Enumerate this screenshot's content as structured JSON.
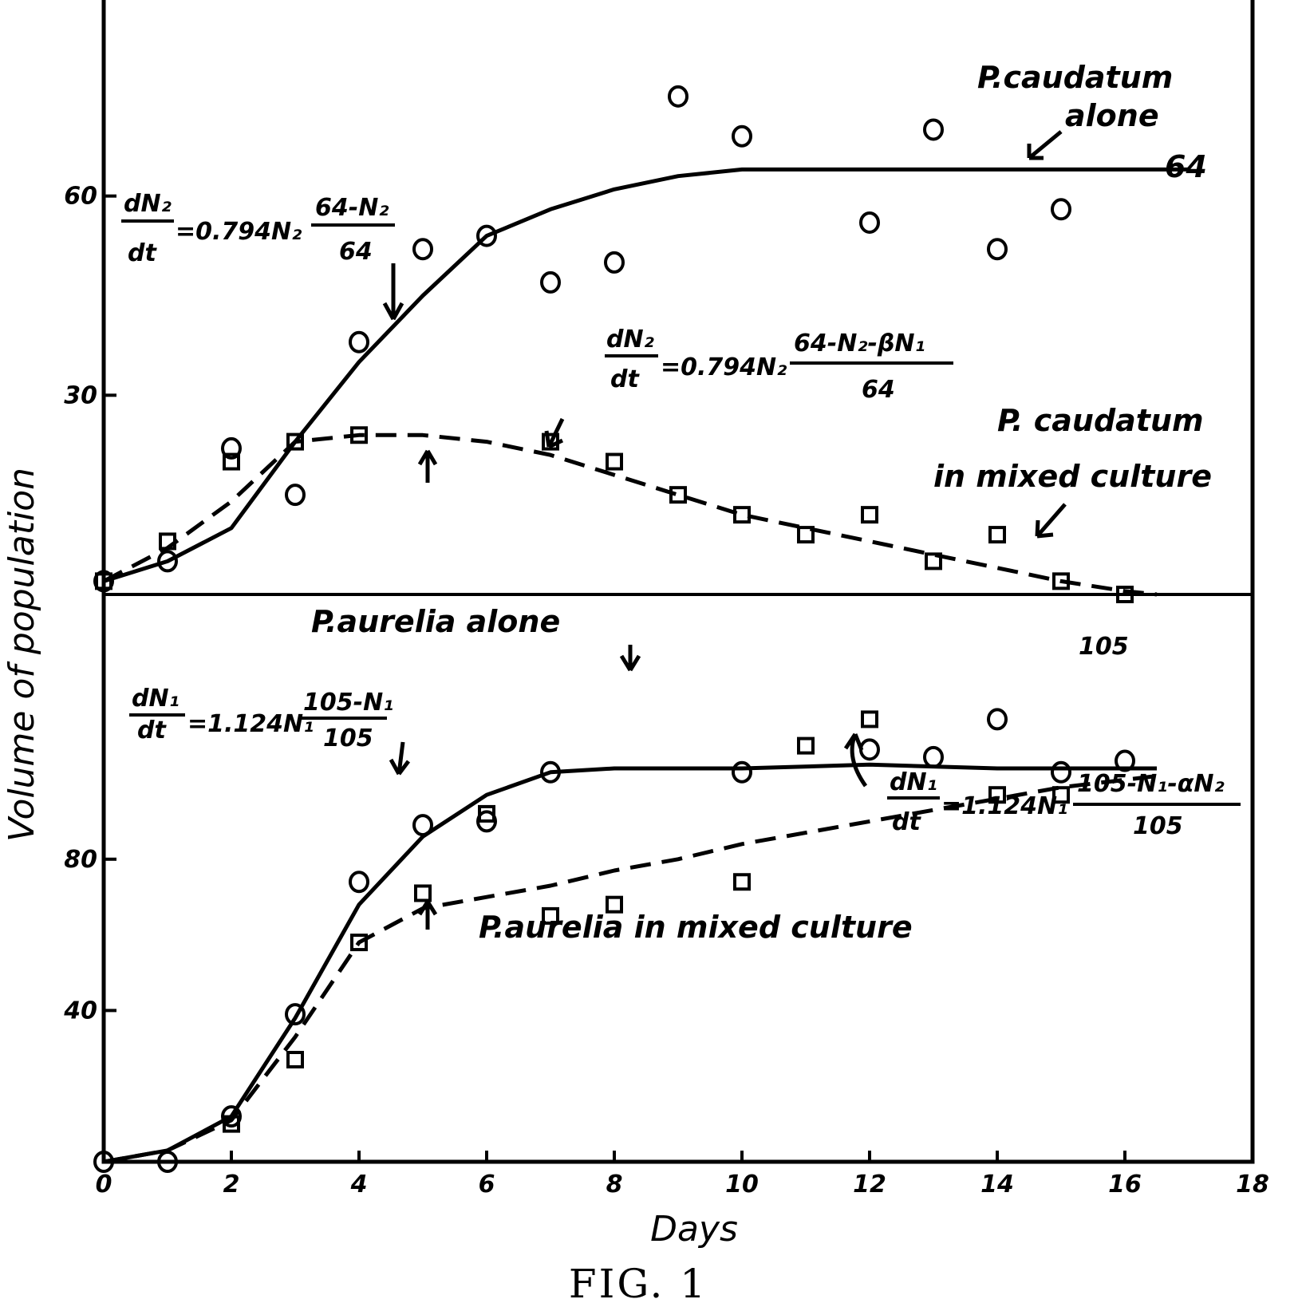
{
  "figure": {
    "caption": "FIG. 1"
  },
  "chart_data": [
    {
      "type": "scatter",
      "panel": "top",
      "xlabel": "",
      "ylabel": "",
      "xlim": [
        0,
        18
      ],
      "ylim": [
        0,
        90
      ],
      "y_tick_labels": [
        {
          "value": 30,
          "label": "30"
        },
        {
          "value": 60,
          "label": "60"
        }
      ],
      "series": [
        {
          "name": "P. caudatum alone",
          "marker": "circle",
          "points": [
            [
              0,
              2
            ],
            [
              1,
              5
            ],
            [
              2,
              22
            ],
            [
              3,
              15
            ],
            [
              4,
              38
            ],
            [
              5,
              52
            ],
            [
              6,
              54
            ],
            [
              7,
              47
            ],
            [
              8,
              50
            ],
            [
              9,
              75
            ],
            [
              10,
              69
            ],
            [
              12,
              56
            ],
            [
              13,
              70
            ],
            [
              14,
              52
            ],
            [
              15,
              58
            ]
          ],
          "curve": [
            [
              0,
              2
            ],
            [
              1,
              5
            ],
            [
              2,
              10
            ],
            [
              3,
              23
            ],
            [
              4,
              35
            ],
            [
              5,
              45
            ],
            [
              6,
              54
            ],
            [
              7,
              58
            ],
            [
              8,
              61
            ],
            [
              9,
              63
            ],
            [
              10,
              64
            ],
            [
              12,
              64
            ],
            [
              14,
              64
            ],
            [
              17,
              64
            ]
          ]
        },
        {
          "name": "P. caudatum in mixed culture",
          "marker": "square",
          "points": [
            [
              0,
              2
            ],
            [
              1,
              8
            ],
            [
              2,
              20
            ],
            [
              3,
              23
            ],
            [
              4,
              24
            ],
            [
              7,
              23
            ],
            [
              8,
              20
            ],
            [
              9,
              15
            ],
            [
              10,
              12
            ],
            [
              11,
              9
            ],
            [
              12,
              12
            ],
            [
              13,
              5
            ],
            [
              14,
              9
            ],
            [
              15,
              2
            ],
            [
              16,
              0
            ]
          ],
          "curve": [
            [
              0,
              2
            ],
            [
              1,
              7
            ],
            [
              2,
              14
            ],
            [
              3,
              23
            ],
            [
              4,
              24
            ],
            [
              5,
              24
            ],
            [
              6,
              23
            ],
            [
              7,
              21
            ],
            [
              8,
              18
            ],
            [
              9,
              15
            ],
            [
              10,
              12
            ],
            [
              11,
              10
            ],
            [
              12,
              8
            ],
            [
              13,
              6
            ],
            [
              14,
              4
            ],
            [
              15,
              2
            ],
            [
              16,
              0.5
            ],
            [
              16.5,
              0
            ]
          ]
        }
      ],
      "annotations": {
        "alone_label_1": "P.caudatum",
        "alone_label_2": "alone",
        "asymptote_label": "64",
        "mixed_label_1": "P. caudatum",
        "mixed_label_2": "in mixed culture",
        "eq_alone": {
          "num": "dN₂",
          "den": "dt",
          "mid": "=0.794N₂",
          "frac_num": "64-N₂",
          "frac_den": "64"
        },
        "eq_mixed": {
          "num": "dN₂",
          "den": "dt",
          "mid": "=0.794N₂",
          "frac_num": "64-N₂-βN₁",
          "frac_den": "64"
        }
      }
    },
    {
      "type": "scatter",
      "panel": "bottom",
      "xlabel": "Days",
      "ylabel": "Volume of population",
      "xlim": [
        0,
        18
      ],
      "ylim": [
        0,
        150
      ],
      "x_tick_labels": [
        {
          "value": 0,
          "label": "0"
        },
        {
          "value": 2,
          "label": "2"
        },
        {
          "value": 4,
          "label": "4"
        },
        {
          "value": 6,
          "label": "6"
        },
        {
          "value": 8,
          "label": "8"
        },
        {
          "value": 10,
          "label": "10"
        },
        {
          "value": 12,
          "label": "12"
        },
        {
          "value": 14,
          "label": "14"
        },
        {
          "value": 16,
          "label": "16"
        },
        {
          "value": 18,
          "label": "18"
        }
      ],
      "y_tick_labels": [
        {
          "value": 40,
          "label": "40"
        },
        {
          "value": 80,
          "label": "80"
        }
      ],
      "series": [
        {
          "name": "P. aurelia alone",
          "marker": "circle",
          "points": [
            [
              0,
              0
            ],
            [
              1,
              0
            ],
            [
              2,
              12
            ],
            [
              3,
              39
            ],
            [
              4,
              74
            ],
            [
              5,
              89
            ],
            [
              6,
              90
            ],
            [
              7,
              103
            ],
            [
              10,
              103
            ],
            [
              12,
              109
            ],
            [
              13,
              107
            ],
            [
              14,
              117
            ],
            [
              15,
              103
            ],
            [
              16,
              106
            ]
          ],
          "curve": [
            [
              0,
              0
            ],
            [
              1,
              3
            ],
            [
              2,
              12
            ],
            [
              3,
              38
            ],
            [
              4,
              68
            ],
            [
              5,
              86
            ],
            [
              6,
              97
            ],
            [
              7,
              103
            ],
            [
              8,
              104
            ],
            [
              10,
              104
            ],
            [
              12,
              105
            ],
            [
              14,
              104
            ],
            [
              16,
              104
            ],
            [
              16.5,
              104
            ]
          ]
        },
        {
          "name": "P. aurelia in mixed culture",
          "marker": "square",
          "points": [
            [
              2,
              10
            ],
            [
              3,
              27
            ],
            [
              4,
              58
            ],
            [
              5,
              71
            ],
            [
              6,
              92
            ],
            [
              7,
              65
            ],
            [
              8,
              68
            ],
            [
              10,
              74
            ],
            [
              11,
              110
            ],
            [
              12,
              117
            ],
            [
              14,
              97
            ],
            [
              15,
              97
            ]
          ],
          "curve": [
            [
              0,
              0
            ],
            [
              1,
              3
            ],
            [
              2,
              11
            ],
            [
              3,
              33
            ],
            [
              4,
              58
            ],
            [
              5,
              67
            ],
            [
              6,
              70
            ],
            [
              7,
              73
            ],
            [
              8,
              77
            ],
            [
              9,
              80
            ],
            [
              10,
              84
            ],
            [
              11,
              87
            ],
            [
              12,
              90
            ],
            [
              13,
              93
            ],
            [
              14,
              96
            ],
            [
              15,
              99
            ],
            [
              16,
              101
            ],
            [
              16.5,
              102
            ]
          ]
        }
      ],
      "annotations": {
        "alone_label": "P.aurelia  alone",
        "asymptote_label": "105",
        "mixed_label": "P.aurelia in mixed culture",
        "eq_alone": {
          "num": "dN₁",
          "den": "dt",
          "mid": "=1.124N₁",
          "frac_num": "105-N₁",
          "frac_den": "105"
        },
        "eq_mixed": {
          "num": "dN₁",
          "den": "dt",
          "mid": "=1.124N₁",
          "frac_num": "105-N₁-αN₂",
          "frac_den": "105"
        }
      }
    }
  ]
}
